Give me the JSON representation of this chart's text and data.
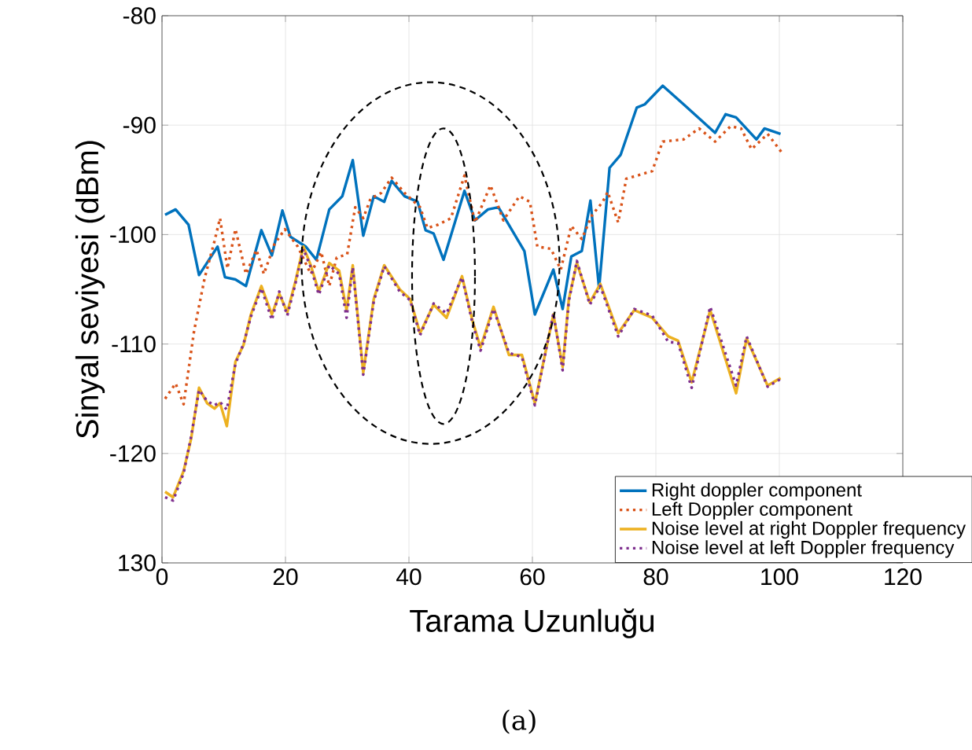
{
  "chart_data": {
    "type": "line",
    "xlabel": "Tarama Uzunluğu",
    "ylabel": "Sinyal seviyesi (dBm)",
    "xlim": [
      0,
      120
    ],
    "ylim": [
      -130,
      -80
    ],
    "xticks": [
      0,
      20,
      40,
      60,
      80,
      100,
      120
    ],
    "yticks": [
      {
        "value": -130,
        "label": "130"
      },
      -120,
      -110,
      -100,
      -90,
      -80
    ],
    "grid": true,
    "legend": "bottom right",
    "marker": "none",
    "annotations": [
      "(a)"
    ],
    "series": [
      {
        "name": "Right doppler component",
        "color": "#0072bd",
        "line_style": "solid",
        "x": [
          0.5,
          2.2,
          4.3,
          6,
          9,
          10.2,
          11.9,
          13.6,
          16.1,
          17.8,
          19.5,
          20.8,
          23.3,
          25,
          27.1,
          29.2,
          30.9,
          32.6,
          34.3,
          36,
          37.2,
          39.3,
          41.4,
          42.7,
          44,
          45.6,
          49,
          50.7,
          52.8,
          54.5,
          58.7,
          60.4,
          63.4,
          64.9,
          66.3,
          68,
          69.4,
          70.8,
          72.5,
          74.3,
          76.9,
          78.2,
          81.1,
          84.5,
          89.6,
          91.3,
          93,
          96.3,
          97.6,
          100.2
        ],
        "values": [
          -98.2,
          -97.7,
          -99.1,
          -103.7,
          -101.1,
          -103.9,
          -104.1,
          -104.7,
          -99.6,
          -101.9,
          -97.8,
          -100.2,
          -101.1,
          -102.3,
          -97.7,
          -96.5,
          -93.2,
          -100.1,
          -96.5,
          -97,
          -95.1,
          -96.5,
          -97,
          -99.6,
          -99.9,
          -102.3,
          -96,
          -98.7,
          -97.7,
          -97.5,
          -101.5,
          -107.3,
          -103.2,
          -106.8,
          -102,
          -101.5,
          -96.9,
          -104.9,
          -93.9,
          -92.7,
          -88.4,
          -88.1,
          -86.4,
          -88.1,
          -90.7,
          -89,
          -89.3,
          -91.3,
          -90.3,
          -90.8
        ]
      },
      {
        "name": "Left Doppler component",
        "color": "#d95319",
        "line_style": "dotted",
        "x": [
          0.5,
          2.2,
          3.5,
          5.2,
          6.9,
          8.5,
          9.4,
          10.6,
          11.9,
          13.6,
          15.3,
          16.5,
          18.2,
          19.9,
          22,
          24.1,
          25.8,
          27.1,
          28.3,
          30,
          31.3,
          32.6,
          33.8,
          35.5,
          37.2,
          39.3,
          41.8,
          43,
          44.7,
          46.8,
          49,
          50.7,
          53.2,
          55.3,
          57.9,
          59.6,
          60.8,
          63,
          64.6,
          66.3,
          68,
          69.7,
          71.4,
          72.2,
          73.9,
          75.2,
          79.4,
          81.1,
          84.5,
          87,
          89.6,
          92.1,
          93.8,
          95.5,
          98.1,
          100.4
        ],
        "values": [
          -115,
          -113.6,
          -115.5,
          -108.8,
          -104,
          -100.6,
          -98.5,
          -103.1,
          -99.5,
          -103.6,
          -101.4,
          -103.6,
          -100.9,
          -99.5,
          -101.1,
          -103.6,
          -101.6,
          -104.7,
          -102.1,
          -101.8,
          -97.5,
          -98.5,
          -96.7,
          -96.2,
          -94.8,
          -96.2,
          -97.5,
          -99.4,
          -99.1,
          -98.5,
          -94.6,
          -98.9,
          -95.5,
          -98.7,
          -96.5,
          -97,
          -101.1,
          -101.3,
          -103.2,
          -99.2,
          -100.4,
          -98.2,
          -97,
          -96.1,
          -98.9,
          -94.9,
          -94.2,
          -91.5,
          -91.3,
          -90.3,
          -91.5,
          -90.1,
          -90.3,
          -92.2,
          -90.8,
          -92.5
        ]
      },
      {
        "name": "Noise level at right Doppler frequency",
        "color": "#edb120",
        "line_style": "solid",
        "x": [
          0.5,
          1.8,
          3.5,
          4.7,
          6,
          7.3,
          8.5,
          9.4,
          10.5,
          11.9,
          13.2,
          14.4,
          16.1,
          17.8,
          19,
          20.3,
          21.6,
          22.9,
          24.1,
          25.4,
          27.1,
          28.7,
          29.9,
          30.9,
          32.6,
          34.3,
          36,
          38.5,
          40.2,
          41.8,
          44,
          46.1,
          48.6,
          50.3,
          51.6,
          53.7,
          56.2,
          58.3,
          60.4,
          63.4,
          64.9,
          65.9,
          67.2,
          69.3,
          71,
          73.9,
          76.5,
          79.4,
          82,
          83.6,
          85.8,
          88.8,
          93,
          94.7,
          98.1,
          100.2
        ],
        "values": [
          -123.5,
          -124,
          -121.6,
          -118.7,
          -114,
          -115.4,
          -115.9,
          -115.4,
          -117.5,
          -111.6,
          -110.1,
          -107.3,
          -104.7,
          -107.3,
          -105.4,
          -107.1,
          -104.3,
          -101.1,
          -102.8,
          -105.2,
          -102.6,
          -103.3,
          -106.9,
          -102.8,
          -112.6,
          -105.9,
          -102.8,
          -105,
          -105.9,
          -109,
          -106.4,
          -107.6,
          -103.8,
          -107.9,
          -110.3,
          -106.6,
          -111,
          -111,
          -115.4,
          -107.3,
          -112.1,
          -105.9,
          -102.6,
          -106.2,
          -104.5,
          -109,
          -106.9,
          -107.6,
          -109.3,
          -109.7,
          -113.5,
          -106.9,
          -114.5,
          -109.5,
          -113.8,
          -113.1
        ]
      },
      {
        "name": "Noise level at left Doppler frequency",
        "color": "#7e2f8e",
        "line_style": "dotted",
        "x": [
          0.5,
          1.8,
          3.5,
          4.7,
          6,
          7.3,
          8.5,
          9.4,
          10.5,
          11.9,
          13.2,
          14.4,
          16.1,
          17.8,
          19,
          20.3,
          21.6,
          22.9,
          24.1,
          25.4,
          27.1,
          28.7,
          29.9,
          30.9,
          32.6,
          34.3,
          36,
          38.5,
          40.2,
          41.8,
          44,
          46.1,
          48.6,
          50.3,
          51.6,
          53.7,
          56.2,
          58.3,
          60.4,
          63.4,
          64.9,
          65.9,
          67.2,
          69.3,
          71,
          73.9,
          76.5,
          79.4,
          82,
          83.6,
          85.8,
          88.8,
          93,
          94.7,
          98.1,
          100.2
        ],
        "values": [
          -124,
          -124.3,
          -121.8,
          -118.5,
          -114.2,
          -115.2,
          -115.6,
          -115.3,
          -116,
          -111.8,
          -110,
          -107.5,
          -104.9,
          -107.8,
          -105.2,
          -107.4,
          -104.5,
          -101.3,
          -103,
          -105.5,
          -102.8,
          -103.6,
          -107.6,
          -103,
          -112.8,
          -106.1,
          -102.9,
          -105.2,
          -106,
          -109.2,
          -106.3,
          -107.2,
          -103.9,
          -108.1,
          -110.6,
          -106.8,
          -110.8,
          -111.2,
          -115.6,
          -107.2,
          -112.4,
          -106.1,
          -102.4,
          -106.4,
          -104.7,
          -109.3,
          -106.8,
          -107.4,
          -109.8,
          -109.9,
          -114,
          -106.6,
          -113.8,
          -109.3,
          -113.9,
          -113.2
        ]
      }
    ]
  }
}
